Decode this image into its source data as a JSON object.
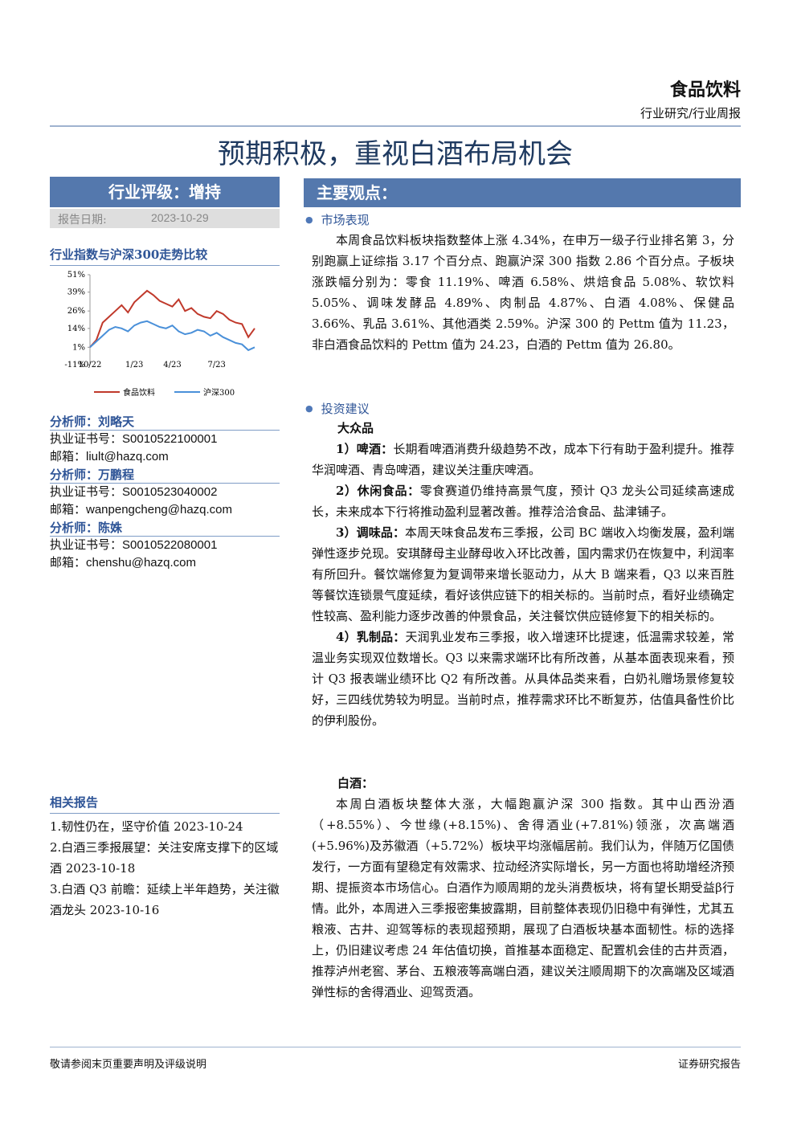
{
  "header": {
    "sector": "食品饮料",
    "category": "行业研究/行业周报"
  },
  "title": "预期积极，重视白酒布局机会",
  "sidebar": {
    "rating": "行业评级：增持",
    "date_label": "报告日期:",
    "date": "2023-10-29",
    "analysts": [
      {
        "name": "分析师：刘略天",
        "cert": "执业证书号：S0010522100001",
        "email": "邮箱：liult@hazq.com"
      },
      {
        "name": "分析师：万鹏程",
        "cert": "执业证书号：S0010523040002",
        "email": "邮箱：wanpengcheng@hazq.com"
      },
      {
        "name": "分析师：陈姝",
        "cert": "执业证书号：S0010522080001",
        "email": "邮箱：chenshu@hazq.com"
      }
    ],
    "related": {
      "title": "相关报告",
      "items": [
        "1.韧性仍在，坚守价值 2023-10-24",
        "2.白酒三季报展望：关注安席支撑下的区域酒 2023-10-18",
        "3.白酒 Q3 前瞻：延续上半年趋势，关注徽酒龙头 2023-10-16"
      ]
    }
  },
  "chart_data": {
    "type": "line",
    "title": "行业指数与沪深300走势比较",
    "categories": [
      "10/22",
      null,
      null,
      null,
      null,
      null,
      null,
      "1/23",
      null,
      null,
      null,
      null,
      null,
      "4/23",
      null,
      null,
      null,
      null,
      null,
      null,
      "7/23",
      null,
      null,
      null,
      null,
      null,
      null
    ],
    "series": [
      {
        "name": "食品饮料",
        "color": "#c0392b",
        "values": [
          1,
          6,
          18,
          22,
          26,
          30,
          25,
          32,
          36,
          40,
          37,
          33,
          31,
          29,
          34,
          26,
          28,
          24,
          22,
          21,
          26,
          24,
          20,
          18,
          17,
          8,
          14
        ]
      },
      {
        "name": "沪深300",
        "color": "#4a90d9",
        "values": [
          1,
          5,
          9,
          13,
          15,
          14,
          12,
          16,
          18,
          19,
          17,
          15,
          14,
          16,
          12,
          10,
          11,
          13,
          12,
          9,
          11,
          8,
          6,
          4,
          3,
          -1,
          1
        ]
      }
    ],
    "ylim": [
      -11,
      51
    ],
    "yticks": [
      {
        "value": 51,
        "label": "51%"
      },
      {
        "value": 39,
        "label": "39%"
      },
      {
        "value": 26,
        "label": "26%"
      },
      {
        "value": 14,
        "label": "14%"
      },
      {
        "value": 1,
        "label": "1%"
      },
      {
        "value": -11,
        "label": "-11%"
      }
    ]
  },
  "main": {
    "heading": "主要观点：",
    "market": {
      "heading": "市场表现",
      "text": "本周食品饮料板块指数整体上涨 4.34%，在申万一级子行业排名第 3，分别跑赢上证综指 3.17 个百分点、跑赢沪深 300 指数 2.86 个百分点。子板块涨跌幅分别为：零食 11.19%、啤酒 6.58%、烘焙食品 5.08%、软饮料 5.05%、调味发酵品 4.89%、肉制品 4.87%、白酒 4.08%、保健品 3.66%、乳品 3.61%、其他酒类 2.59%。沪深 300 的 Pettm 值为 11.23，非白酒食品饮料的 Pettm 值为 24.23，白酒的 Pettm 值为 26.80。"
    },
    "advice": {
      "heading": "投资建议",
      "mass": {
        "heading": "大众品",
        "items": [
          {
            "label": "1）啤酒：",
            "text": "长期看啤酒消费升级趋势不改，成本下行有助于盈利提升。推荐华润啤酒、青岛啤酒，建议关注重庆啤酒。"
          },
          {
            "label": "2）休闲食品：",
            "text": "零食赛道仍维持高景气度，预计 Q3 龙头公司延续高速成长，未来成本下行将推动盈利显著改善。推荐洽洽食品、盐津铺子。"
          },
          {
            "label": "3）调味品：",
            "text": "本周天味食品发布三季报，公司 BC 端收入均衡发展，盈利端弹性逐步兑现。安琪酵母主业酵母收入环比改善，国内需求仍在恢复中，利润率有所回升。餐饮端修复为复调带来增长驱动力，从大 B 端来看，Q3 以来百胜等餐饮连锁景气度延续，看好该供应链下的相关标的。当前时点，看好业绩确定性较高、盈利能力逐步改善的仲景食品，关注餐饮供应链修复下的相关标的。"
          },
          {
            "label": "4）乳制品：",
            "text": "天润乳业发布三季报，收入增速环比提速，低温需求较差，常温业务实现双位数增长。Q3 以来需求端环比有所改善，从基本面表现来看，预计 Q3 报表端业绩环比 Q2 有所改善。从具体品类来看，白奶礼赠场景修复较好，三四线优势较为明显。当前时点，推荐需求环比不断复苏，估值具备性价比的伊利股份。"
          }
        ]
      },
      "baijiu": {
        "heading": "白酒：",
        "text": "本周白酒板块整体大涨，大幅跑赢沪深 300 指数。其中山西汾酒（+8.55%）、今世缘(+8.15%)、舍得酒业(+7.81%)领涨，次高端酒(+5.96%)及苏徽酒（+5.72%）板块平均涨幅居前。我们认为，伴随万亿国债发行，一方面有望稳定有效需求、拉动经济实际增长，另一方面也将助增经济预期、提振资本市场信心。白酒作为顺周期的龙头消费板块，将有望长期受益β行情。此外，本周进入三季报密集披露期，目前整体表现仍旧稳中有弹性，尤其五粮液、古井、迎驾等标的表现超预期，展现了白酒板块基本面韧性。标的选择上，仍旧建议考虑 24 年估值切换，首推基本面稳定、配置机会佳的古井贡酒，推荐泸州老窖、茅台、五粮液等高端白酒，建议关注顺周期下的次高端及区域酒弹性标的舍得酒业、迎驾贡酒。"
      }
    }
  },
  "footer": {
    "left": "敬请参阅末页重要声明及评级说明",
    "right": "证券研究报告"
  }
}
